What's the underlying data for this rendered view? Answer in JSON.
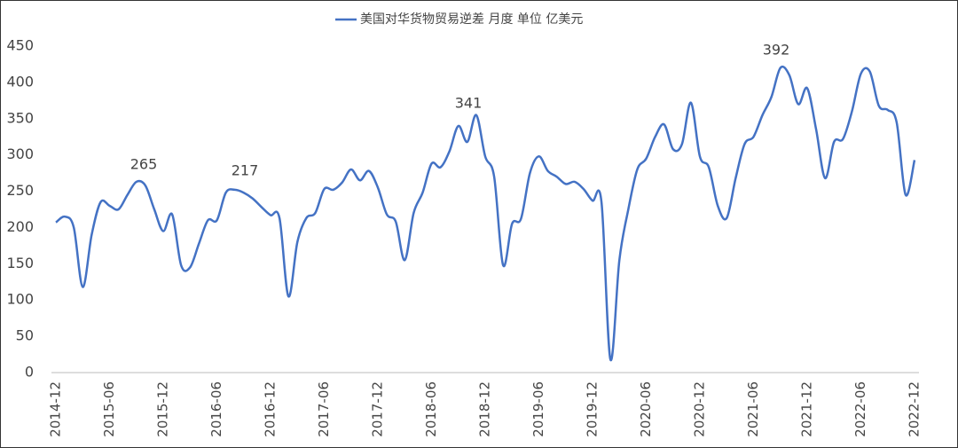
{
  "chart_data": {
    "type": "line",
    "categories": [
      "2014-12",
      null,
      null,
      null,
      null,
      null,
      "2015-06",
      null,
      null,
      null,
      null,
      null,
      "2015-12",
      null,
      null,
      null,
      null,
      null,
      "2016-06",
      null,
      null,
      null,
      null,
      null,
      "2016-12",
      null,
      null,
      null,
      null,
      null,
      "2017-06",
      null,
      null,
      null,
      null,
      null,
      "2017-12",
      null,
      null,
      null,
      null,
      null,
      "2018-06",
      null,
      null,
      null,
      null,
      null,
      "2018-12",
      null,
      null,
      null,
      null,
      null,
      "2019-06",
      null,
      null,
      null,
      null,
      null,
      "2019-12",
      null,
      null,
      null,
      null,
      null,
      "2020-06",
      null,
      null,
      null,
      null,
      null,
      "2020-12",
      null,
      null,
      null,
      null,
      null,
      "2021-06",
      null,
      null,
      null,
      null,
      null,
      "2021-12",
      null,
      null,
      null,
      null,
      null,
      "2022-06",
      null,
      null,
      null,
      null,
      null,
      "2022-12"
    ],
    "series": [
      {
        "name": "美国对华货物贸易逆差 月度 单位 亿美元",
        "color": "#4472c4",
        "values": [
          207,
          215,
          200,
          118,
          190,
          235,
          230,
          225,
          245,
          263,
          258,
          225,
          195,
          218,
          148,
          145,
          178,
          210,
          210,
          248,
          252,
          248,
          240,
          228,
          217,
          213,
          105,
          180,
          213,
          220,
          253,
          252,
          262,
          280,
          265,
          278,
          255,
          218,
          208,
          155,
          220,
          248,
          288,
          283,
          305,
          340,
          318,
          355,
          298,
          270,
          148,
          205,
          212,
          275,
          298,
          278,
          270,
          260,
          263,
          253,
          237,
          235,
          18,
          155,
          225,
          280,
          295,
          325,
          342,
          308,
          315,
          372,
          298,
          283,
          230,
          213,
          268,
          315,
          325,
          355,
          380,
          420,
          410,
          370,
          392,
          335,
          268,
          318,
          322,
          360,
          412,
          415,
          368,
          362,
          345,
          245,
          293
        ]
      }
    ],
    "annotations": [
      "265",
      "217",
      "341",
      "392"
    ],
    "ylim": [
      0,
      450
    ],
    "yticks": [
      0,
      50,
      100,
      150,
      200,
      250,
      300,
      350,
      400,
      450
    ],
    "grid": false,
    "legend": "top"
  }
}
